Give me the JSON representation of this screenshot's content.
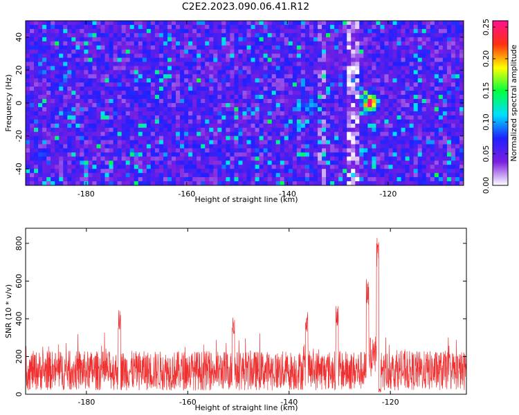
{
  "title": "C2E2.2023.090.06.41.R12",
  "chart_data": [
    {
      "type": "heatmap",
      "xlabel": "Height of straight line (km)",
      "ylabel": "Frequency (Hz)",
      "colorbar_label": "Normalized spectral amplitude",
      "xlim": [
        -192,
        -105
      ],
      "ylim": [
        -50,
        50
      ],
      "xticks": [
        -180,
        -160,
        -140,
        -120
      ],
      "yticks": [
        -40,
        -20,
        0,
        20,
        40
      ],
      "colorbar_lim": [
        0,
        0.26
      ],
      "colorbar_ticks": [
        "0.00",
        "0.05",
        "0.10",
        "0.15",
        "0.20",
        "0.25"
      ],
      "colorbar_tick_values": [
        0,
        0.05,
        0.1,
        0.15,
        0.2,
        0.25
      ],
      "colorscale": [
        "#ffffff",
        "#7a1fe0",
        "#2020ff",
        "#00e0ff",
        "#00ff40",
        "#ffff00",
        "#ff3010",
        "#ff1090"
      ],
      "feature": {
        "x": -123.5,
        "y": 0,
        "peak": 0.25
      }
    },
    {
      "type": "line",
      "xlabel": "Height of straight line (km)",
      "ylabel": "SNR (10 * v/v)",
      "xlim": [
        -192,
        -105
      ],
      "ylim": [
        0,
        880
      ],
      "xticks": [
        -180,
        -160,
        -140,
        -120
      ],
      "yticks": [
        0,
        200,
        400,
        600,
        800
      ],
      "line_color": "#f03030",
      "baseline": 130,
      "spikes": [
        {
          "x": -173.5,
          "y": 450
        },
        {
          "x": -151,
          "y": 420
        },
        {
          "x": -136.5,
          "y": 440
        },
        {
          "x": -130.5,
          "y": 480
        },
        {
          "x": -124.5,
          "y": 620
        },
        {
          "x": -122.5,
          "y": 870
        }
      ]
    }
  ]
}
